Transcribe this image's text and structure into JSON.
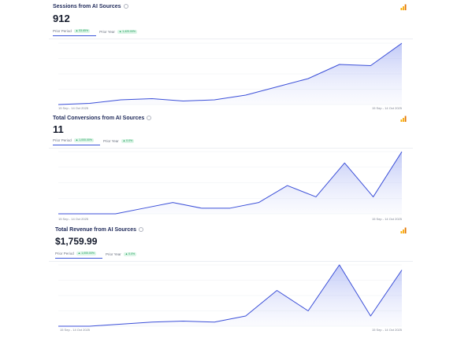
{
  "cards": [
    {
      "title": "Sessions from AI Sources",
      "value": "912",
      "tab_prior_period": "Prior Period",
      "tab_prior_period_badge": "▲ 53.65%",
      "tab_prior_year": "Prior Year",
      "tab_prior_year_badge": "▲ 1,420.00%",
      "date_left": "15 Sep - 14 Oct 2025",
      "date_right": "15 Sep - 14 Oct 2025",
      "chart_data": {
        "type": "area",
        "values": [
          0,
          1,
          4,
          5,
          3,
          4,
          8,
          15,
          22,
          34,
          33,
          52
        ]
      }
    },
    {
      "title": "Total Conversions from AI Sources",
      "value": "11",
      "tab_prior_period": "Prior Period",
      "tab_prior_period_badge": "▲ 1,000.00%",
      "tab_prior_year": "Prior Year",
      "tab_prior_year_badge": "▲ 0.0%",
      "date_left": "15 Sep - 14 Oct 2025",
      "date_right": "15 Sep - 14 Oct 2025",
      "chart_data": {
        "type": "area",
        "values": [
          0,
          0,
          0,
          1,
          2,
          1,
          1,
          2,
          5,
          3,
          9,
          3,
          11
        ]
      }
    },
    {
      "title": "Total Revenue from AI Sources",
      "value": "$1,759.99",
      "tab_prior_period": "Prior Period",
      "tab_prior_period_badge": "▲ 1,000.00%",
      "tab_prior_year": "Prior Year",
      "tab_prior_year_badge": "▲ 0.0%",
      "date_left": "15 Sep - 14 Oct 2025",
      "date_right": "15 Sep - 14 Oct 2025",
      "chart_data": {
        "type": "area",
        "values": [
          0,
          0,
          2,
          4,
          5,
          4,
          10,
          35,
          15,
          60,
          10,
          55
        ]
      }
    }
  ]
}
